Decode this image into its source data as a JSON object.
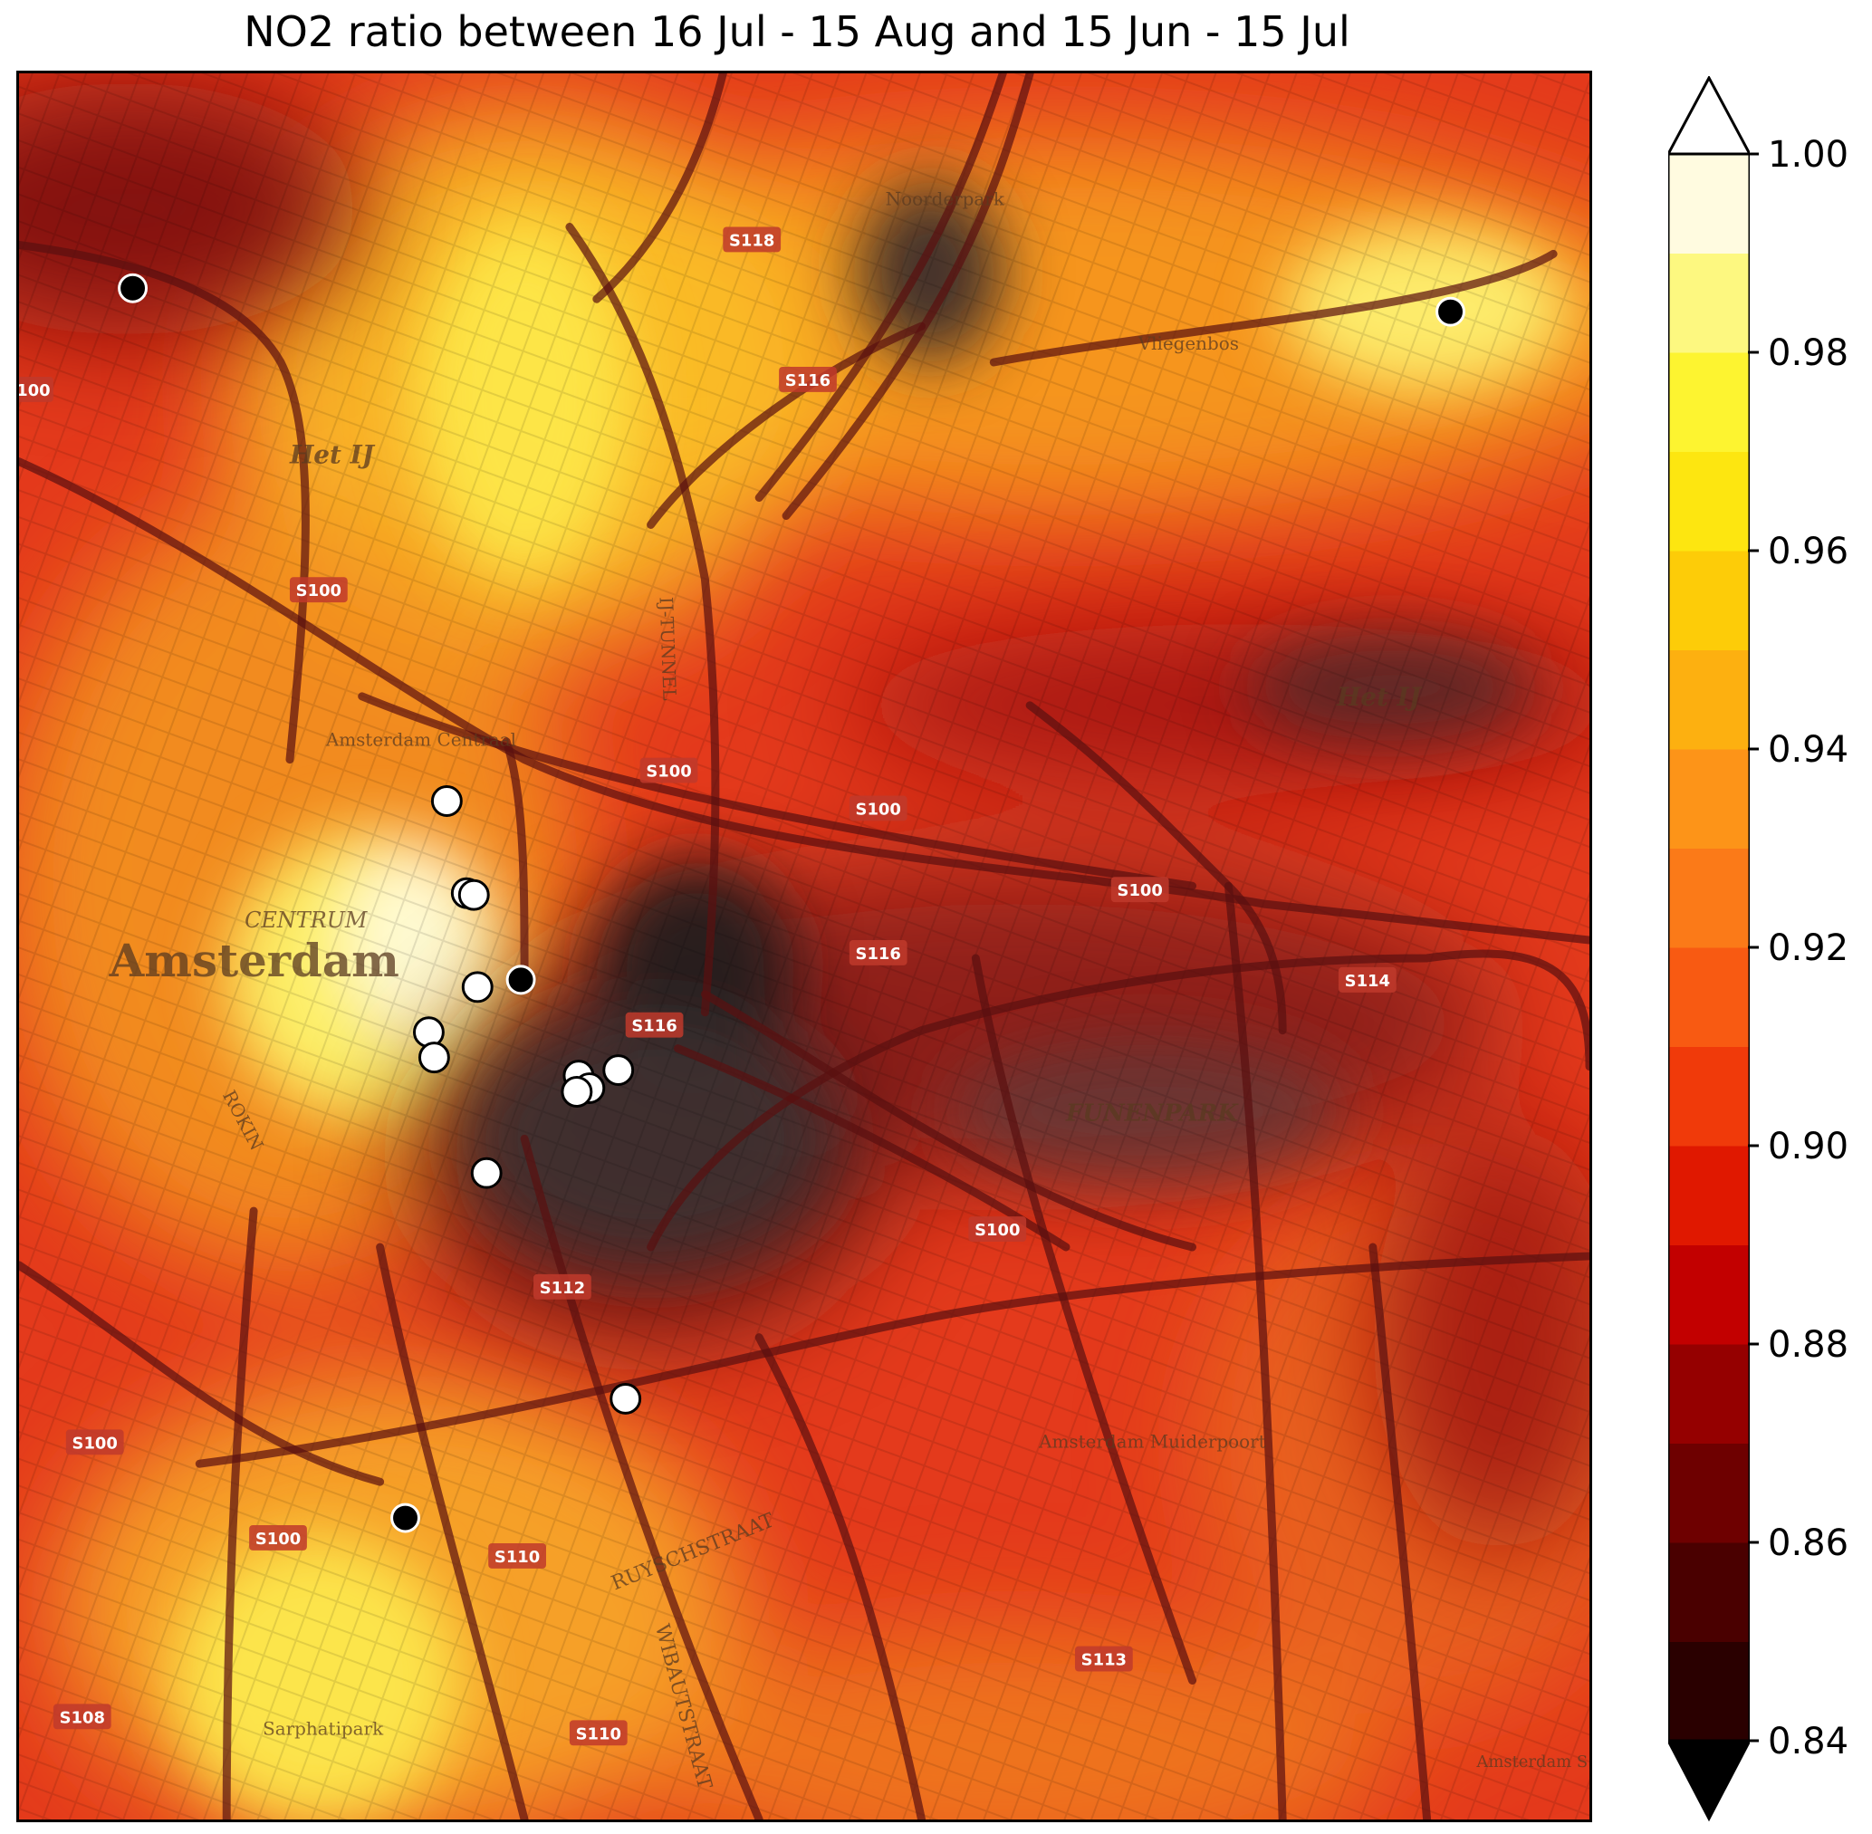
{
  "title": "NO2 ratio between 16 Jul - 15 Aug and 15 Jun - 15 Jul",
  "colorbar": {
    "min": 0.84,
    "max": 1.0,
    "extend": "both",
    "tick_labels": [
      "1.00",
      "0.98",
      "0.96",
      "0.94",
      "0.92",
      "0.90",
      "0.88",
      "0.86",
      "0.84"
    ],
    "tick_values": [
      1.0,
      0.98,
      0.96,
      0.94,
      0.92,
      0.9,
      0.88,
      0.86,
      0.84
    ],
    "levels": [
      0.84,
      0.85,
      0.86,
      0.87,
      0.88,
      0.89,
      0.9,
      0.91,
      0.92,
      0.93,
      0.94,
      0.95,
      0.96,
      0.97,
      0.98,
      0.99,
      1.0
    ],
    "colors": [
      "#2a0000",
      "#4a0000",
      "#6e0000",
      "#950000",
      "#c20000",
      "#e01800",
      "#f03a0a",
      "#f85a12",
      "#fb7a18",
      "#fd9418",
      "#fdb010",
      "#fdcc08",
      "#fde610",
      "#fdf430",
      "#fdf880",
      "#fffbe0"
    ],
    "under_color": "#000000",
    "over_color": "#ffffff"
  },
  "map_labels": [
    {
      "text": "Amsterdam",
      "size": "large"
    },
    {
      "text": "CENTRUM"
    },
    {
      "text": "Het IJ"
    },
    {
      "text": "Het IJ"
    },
    {
      "text": "Noorderpark"
    },
    {
      "text": "Vliegenbos"
    },
    {
      "text": "Amsterdam Centraal"
    },
    {
      "text": "FUNENPARK"
    },
    {
      "text": "Amsterdam Muiderpoort"
    },
    {
      "text": "Sarphatipark"
    },
    {
      "text": "ROKIN"
    },
    {
      "text": "RUYSCHSTRAAT"
    },
    {
      "text": "WIBAUTSTRAAT"
    },
    {
      "text": "IJ-TUNNEL"
    },
    {
      "text": "Amsterdam S Park"
    }
  ],
  "road_shields": [
    "S118",
    "S116",
    "S100",
    "S100",
    "S100",
    "S100",
    "S116",
    "S116",
    "S114",
    "S100",
    "S112",
    "S100",
    "S100",
    "S110",
    "S113",
    "S108",
    "S110",
    "100"
  ],
  "stations": [
    {
      "type": "filled",
      "color": "#000000"
    },
    {
      "type": "filled",
      "color": "#000000"
    },
    {
      "type": "filled",
      "color": "#000000"
    },
    {
      "type": "filled",
      "color": "#000000"
    },
    {
      "type": "open",
      "color": "#ffffff"
    },
    {
      "type": "open",
      "color": "#ffffff"
    },
    {
      "type": "open",
      "color": "#ffffff"
    },
    {
      "type": "open",
      "color": "#ffffff"
    },
    {
      "type": "open",
      "color": "#ffffff"
    },
    {
      "type": "open",
      "color": "#ffffff"
    },
    {
      "type": "open",
      "color": "#ffffff"
    },
    {
      "type": "open",
      "color": "#ffffff"
    },
    {
      "type": "open",
      "color": "#ffffff"
    },
    {
      "type": "open",
      "color": "#ffffff"
    },
    {
      "type": "open",
      "color": "#ffffff"
    },
    {
      "type": "open",
      "color": "#ffffff"
    }
  ]
}
